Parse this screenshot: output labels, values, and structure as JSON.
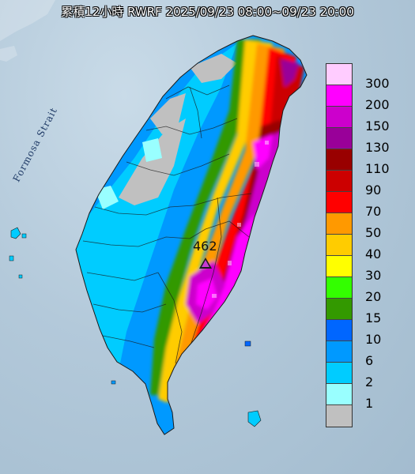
{
  "title": "累積12小時 RWRF 2025/09/23 08:00~09/23 20:00",
  "strait_label": "Formosa Strait",
  "max_value": "462",
  "legend": [
    {
      "label": "300",
      "color": "#ffccff"
    },
    {
      "label": "200",
      "color": "#ff00ff"
    },
    {
      "label": "150",
      "color": "#cc00cc"
    },
    {
      "label": "130",
      "color": "#990099"
    },
    {
      "label": "110",
      "color": "#990000"
    },
    {
      "label": "90",
      "color": "#cc0000"
    },
    {
      "label": "70",
      "color": "#ff0000"
    },
    {
      "label": "50",
      "color": "#ff9900"
    },
    {
      "label": "40",
      "color": "#ffcc00"
    },
    {
      "label": "30",
      "color": "#ffff00"
    },
    {
      "label": "20",
      "color": "#33ff00"
    },
    {
      "label": "15",
      "color": "#339900"
    },
    {
      "label": "10",
      "color": "#0066ff"
    },
    {
      "label": "6",
      "color": "#0099ff"
    },
    {
      "label": "2",
      "color": "#00ccff"
    },
    {
      "label": "1",
      "color": "#99ffff"
    },
    {
      "label": "",
      "color": "#c0c0c0"
    }
  ]
}
